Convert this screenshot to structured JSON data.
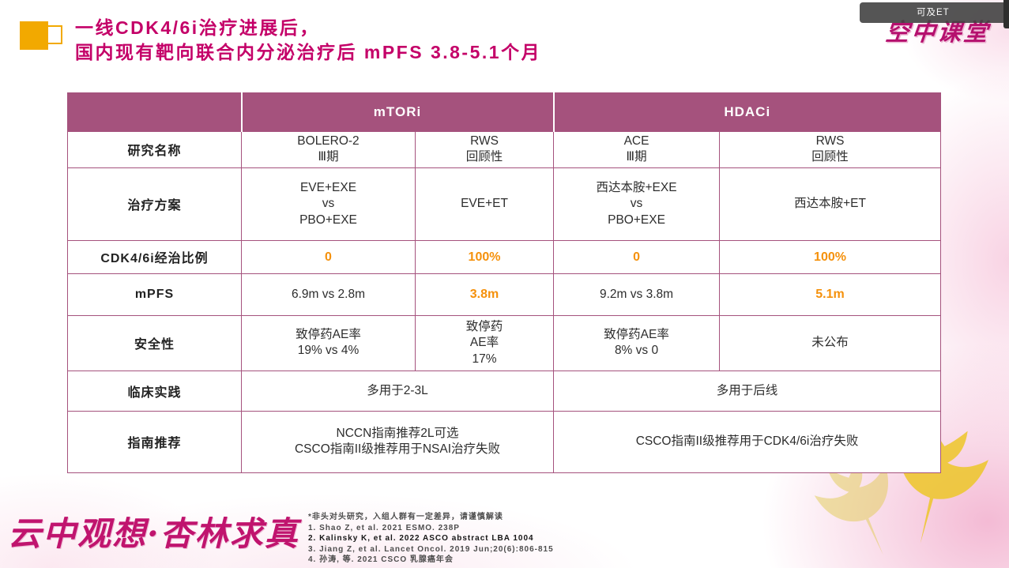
{
  "header": {
    "title_line1": "一线CDK4/6i治疗进展后，",
    "title_line2": "国内现有靶向联合内分泌治疗后 mPFS 3.8-5.1个月"
  },
  "logo": {
    "text": "空中课堂"
  },
  "overlay": {
    "bar_text": "可及ET"
  },
  "table": {
    "group_headers": [
      {
        "label": "mTORi",
        "span": 2
      },
      {
        "label": "HDACi",
        "span": 2
      }
    ],
    "rows": [
      {
        "label": "研究名称",
        "cells": [
          {
            "text": "BOLERO-2\nⅢ期"
          },
          {
            "text": "RWS\n回顾性"
          },
          {
            "text": "ACE\nⅢ期"
          },
          {
            "text": "RWS\n回顾性"
          }
        ]
      },
      {
        "label": "治疗方案",
        "cells": [
          {
            "text": "EVE+EXE\nvs\nPBO+EXE"
          },
          {
            "text": "EVE+ET"
          },
          {
            "text": "西达本胺+EXE\nvs\nPBO+EXE"
          },
          {
            "text": "西达本胺+ET"
          }
        ]
      },
      {
        "label": "CDK4/6i经治比例",
        "cells": [
          {
            "text": "0",
            "highlight": true
          },
          {
            "text": "100%",
            "highlight": true
          },
          {
            "text": "0",
            "highlight": true
          },
          {
            "text": "100%",
            "highlight": true
          }
        ]
      },
      {
        "label": "mPFS",
        "cells": [
          {
            "text": "6.9m vs 2.8m"
          },
          {
            "text": "3.8m",
            "highlight": true
          },
          {
            "text": "9.2m vs 3.8m"
          },
          {
            "text": "5.1m",
            "highlight": true
          }
        ]
      },
      {
        "label": "安全性",
        "cells": [
          {
            "text": "致停药AE率\n19% vs 4%"
          },
          {
            "text": "致停药\nAE率\n17%"
          },
          {
            "text": "致停药AE率\n8% vs 0"
          },
          {
            "text": "未公布"
          }
        ]
      },
      {
        "label": "临床实践",
        "cells": [
          {
            "text": "多用于2-3L",
            "span": 2
          },
          {
            "text": "多用于后线",
            "span": 2
          }
        ]
      },
      {
        "label": "指南推荐",
        "cells": [
          {
            "text": "NCCN指南推荐2L可选\nCSCO指南II级推荐用于NSAI治疗失败",
            "span": 2
          },
          {
            "text": "CSCO指南II级推荐用于CDK4/6i治疗失败",
            "span": 2
          }
        ]
      }
    ]
  },
  "footer": {
    "slogan": "云中观想·杏林求真",
    "disclaimer": "*非头对头研究，入组人群有一定差异，请谨慎解读",
    "references": [
      {
        "text": "1.  Shao Z, et al. 2021 ESMO. 238P",
        "bold": false
      },
      {
        "text": "2.  Kalinsky K, et al. 2022 ASCO abstract LBA 1004",
        "bold": true
      },
      {
        "text": "3.  Jiang Z, et al. Lancet Oncol. 2019 Jun;20(6):806-815",
        "bold": false
      },
      {
        "text": "4.  孙涛, 等. 2021 CSCO 乳腺癌年会",
        "bold": false
      }
    ]
  }
}
